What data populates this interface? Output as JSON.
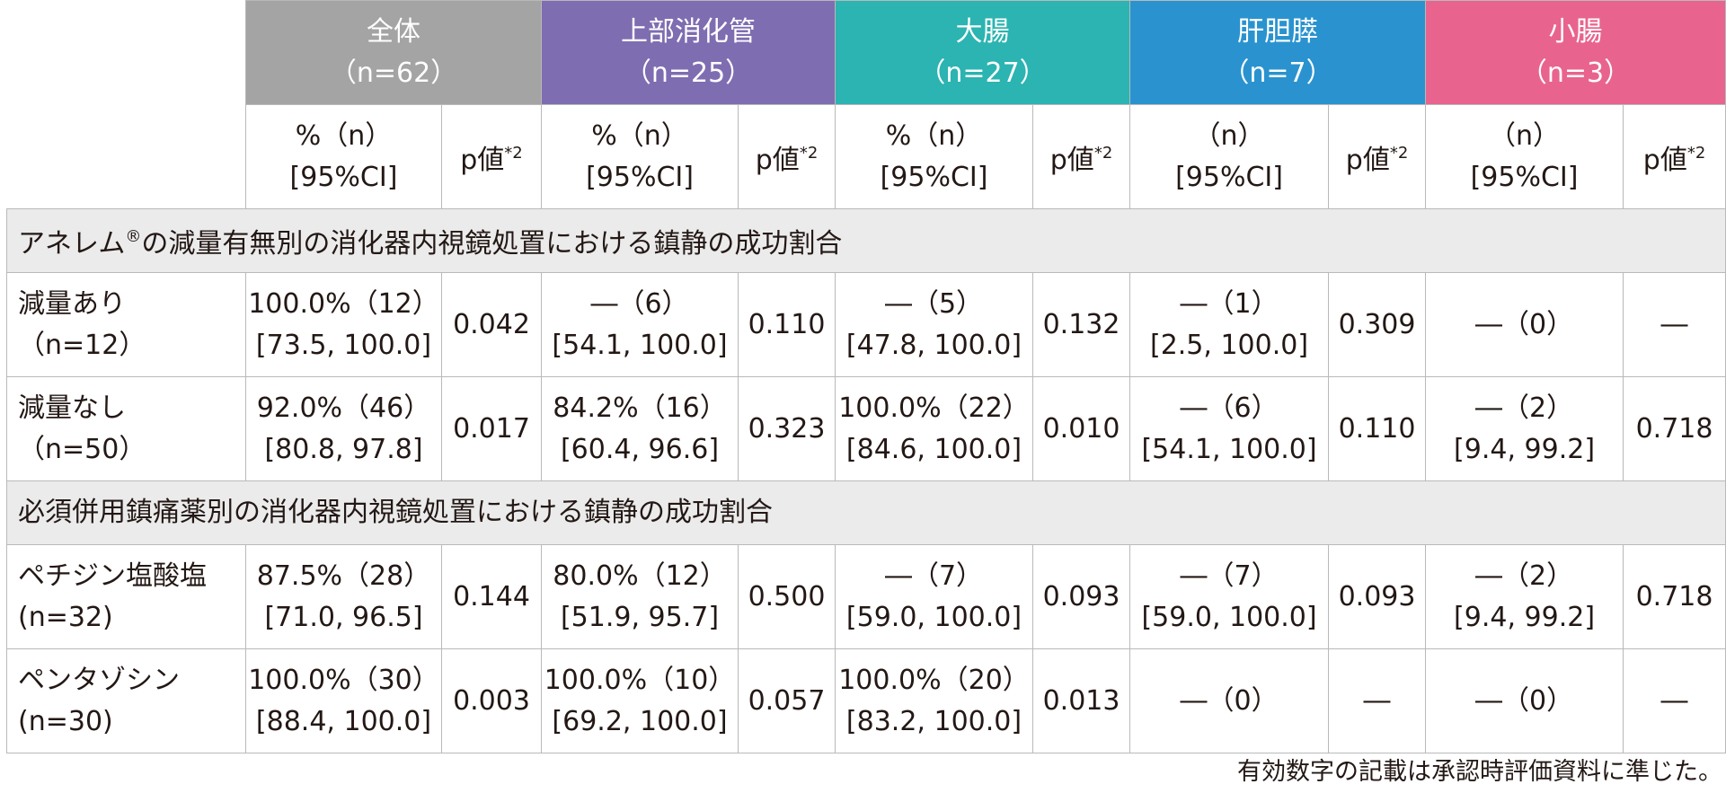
{
  "groups": [
    {
      "name": "全体",
      "n": "（n=62）"
    },
    {
      "name": "上部消化管",
      "n": "（n=25）"
    },
    {
      "name": "大腸",
      "n": "（n=27）"
    },
    {
      "name": "肝胆膵",
      "n": "（n=7）"
    },
    {
      "name": "小腸",
      "n": "（n=3）"
    }
  ],
  "subheaders": [
    {
      "line1": "%（n）",
      "line2": "[95%CI]",
      "p": "p値",
      "sup": "*2"
    },
    {
      "line1": "%（n）",
      "line2": "[95%CI]",
      "p": "p値",
      "sup": "*2"
    },
    {
      "line1": "%（n）",
      "line2": "[95%CI]",
      "p": "p値",
      "sup": "*2"
    },
    {
      "line1": "（n）",
      "line2": "[95%CI]",
      "p": "p値",
      "sup": "*2"
    },
    {
      "line1": "（n）",
      "line2": "[95%CI]",
      "p": "p値",
      "sup": "*2"
    }
  ],
  "sections": [
    {
      "title_pre": "アネレム",
      "title_sup": "®",
      "title_post": "の減量有無別の消化器内視鏡処置における鎮静の成功割合",
      "rows": [
        {
          "label1": "減量あり",
          "label2": "（n=12）",
          "cells": [
            {
              "v1": "100.0%（12）",
              "v2": "[73.5, 100.0]",
              "p": "0.042"
            },
            {
              "v1": "―（6）",
              "v2": "[54.1, 100.0]",
              "p": "0.110"
            },
            {
              "v1": "―（5）",
              "v2": "[47.8, 100.0]",
              "p": "0.132"
            },
            {
              "v1": "―（1）",
              "v2": "[2.5, 100.0]",
              "p": "0.309"
            },
            {
              "v1": "―（0）",
              "v2": "",
              "p": "―"
            }
          ]
        },
        {
          "label1": "減量なし",
          "label2": "（n=50）",
          "cells": [
            {
              "v1": "92.0%（46）",
              "v2": "[80.8, 97.8]",
              "p": "0.017"
            },
            {
              "v1": "84.2%（16）",
              "v2": "[60.4, 96.6]",
              "p": "0.323"
            },
            {
              "v1": "100.0%（22）",
              "v2": "[84.6, 100.0]",
              "p": "0.010"
            },
            {
              "v1": "―（6）",
              "v2": "[54.1, 100.0]",
              "p": "0.110"
            },
            {
              "v1": "―（2）",
              "v2": "[9.4, 99.2]",
              "p": "0.718"
            }
          ]
        }
      ]
    },
    {
      "title_pre": "必須併用鎮痛薬別の消化器内視鏡処置における鎮静の成功割合",
      "title_sup": "",
      "title_post": "",
      "rows": [
        {
          "label1": "ペチジン塩酸塩",
          "label2": "(n=32)",
          "cells": [
            {
              "v1": "87.5%（28）",
              "v2": "[71.0, 96.5]",
              "p": "0.144"
            },
            {
              "v1": "80.0%（12）",
              "v2": "[51.9, 95.7]",
              "p": "0.500"
            },
            {
              "v1": "―（7）",
              "v2": "[59.0, 100.0]",
              "p": "0.093"
            },
            {
              "v1": "―（7）",
              "v2": "[59.0, 100.0]",
              "p": "0.093"
            },
            {
              "v1": "―（2）",
              "v2": "[9.4, 99.2]",
              "p": "0.718"
            }
          ]
        },
        {
          "label1": "ペンタゾシン",
          "label2": "(n=30)",
          "cells": [
            {
              "v1": "100.0%（30）",
              "v2": "[88.4, 100.0]",
              "p": "0.003"
            },
            {
              "v1": "100.0%（10）",
              "v2": "[69.2, 100.0]",
              "p": "0.057"
            },
            {
              "v1": "100.0%（20）",
              "v2": "[83.2, 100.0]",
              "p": "0.013"
            },
            {
              "v1": "―（0）",
              "v2": "",
              "p": "―"
            },
            {
              "v1": "―（0）",
              "v2": "",
              "p": "―"
            }
          ]
        }
      ]
    }
  ],
  "footnote": "有効数字の記載は承認時評価資料に準じた。",
  "colors": {
    "all": "#a4a4a4",
    "upper": "#7f6db1",
    "colon": "#2bb4b1",
    "hpb": "#2a93cf",
    "small": "#e8648e",
    "section_bg": "#ebebeb"
  }
}
